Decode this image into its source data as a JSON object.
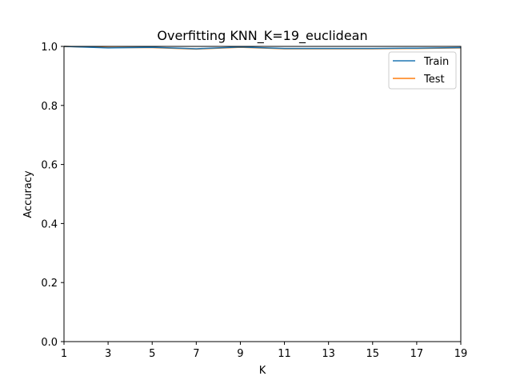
{
  "chart_data": {
    "type": "line",
    "title": "Overfitting KNN_K=19_euclidean",
    "xlabel": "K",
    "ylabel": "Accuracy",
    "x": [
      1,
      3,
      5,
      7,
      9,
      11,
      13,
      15,
      17,
      19
    ],
    "xlim": [
      1,
      19
    ],
    "ylim": [
      0.0,
      1.0
    ],
    "xticks": [
      "1",
      "3",
      "5",
      "7",
      "9",
      "11",
      "13",
      "15",
      "17",
      "19"
    ],
    "yticks": [
      "0.0",
      "0.2",
      "0.4",
      "0.6",
      "0.8",
      "1.0"
    ],
    "grid": false,
    "legend_position": "top-right",
    "series": [
      {
        "name": "Train",
        "color": "#1f77b4",
        "values": [
          1.0,
          0.995,
          0.997,
          0.992,
          0.998,
          0.993,
          0.993,
          0.993,
          0.994,
          0.996
        ]
      },
      {
        "name": "Test",
        "color": "#ff7f0e",
        "values": [
          1.0,
          0.996,
          0.996,
          0.991,
          0.997,
          0.992,
          0.992,
          0.992,
          0.993,
          0.995
        ]
      }
    ]
  }
}
